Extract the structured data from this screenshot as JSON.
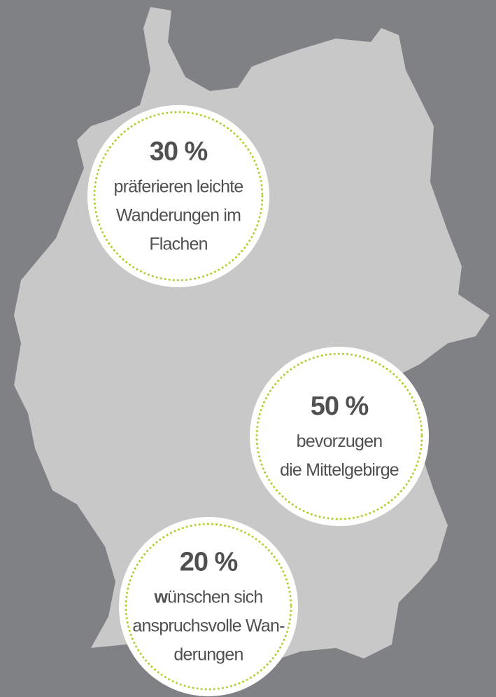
{
  "callouts": [
    {
      "percent": "30 %",
      "lines": [
        "präferieren leichte",
        "Wanderungen im",
        "Flachen"
      ]
    },
    {
      "percent": "50 %",
      "lines": [
        "bevorzugen",
        "die Mittelgebirge"
      ]
    },
    {
      "percent": "20 %",
      "lead_bold": "w",
      "lead_rest": "ünschen sich",
      "lines": [
        "anspruchsvolle Wan-",
        "derungen"
      ]
    }
  ]
}
